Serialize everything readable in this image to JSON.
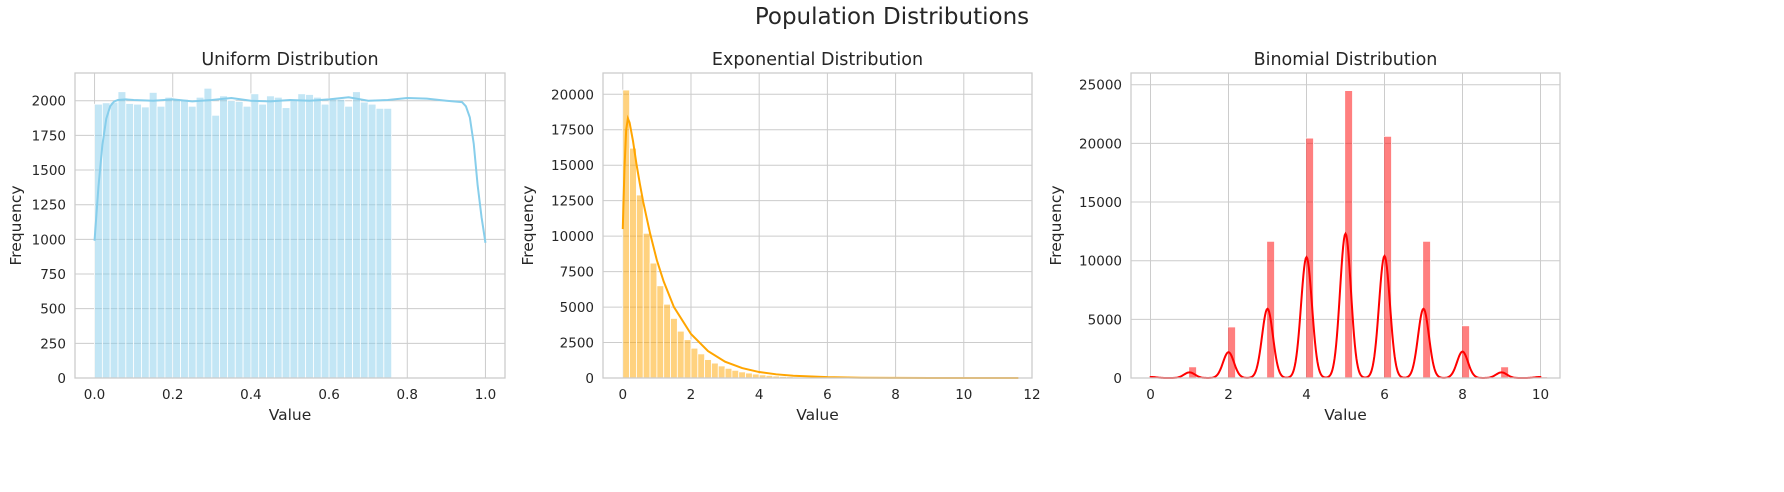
{
  "figure": {
    "suptitle": "Population Distributions"
  },
  "chart_data": [
    {
      "type": "bar",
      "title": "Uniform Distribution",
      "xlabel": "Value",
      "ylabel": "Frequency",
      "xlim": [
        -0.05,
        1.05
      ],
      "ylim": [
        0,
        2200
      ],
      "xticks": [
        0.0,
        0.2,
        0.4,
        0.6,
        0.8,
        1.0
      ],
      "xtick_labels": [
        "0.0",
        "0.2",
        "0.4",
        "0.6",
        "0.8",
        "1.0"
      ],
      "yticks": [
        0,
        250,
        500,
        750,
        1000,
        1250,
        1500,
        1750,
        2000
      ],
      "yticks_labels": [
        "0",
        "250",
        "500",
        "750",
        "1000",
        "1250",
        "1500",
        "1750",
        "2000"
      ],
      "grid": true,
      "bar_color": "#87ceeb",
      "bar_opacity": 0.5,
      "line_color": "#87ceeb",
      "bins": {
        "start": 0.0,
        "width": 0.02,
        "counts": [
          1975,
          1985,
          1990,
          2065,
          1980,
          1975,
          1955,
          2060,
          1960,
          2025,
          2015,
          2010,
          1960,
          2025,
          2090,
          1895,
          2035,
          2000,
          1995,
          1960,
          2050,
          1975,
          2035,
          2025,
          1950,
          2000,
          2050,
          2045,
          2025,
          1975,
          2015,
          2010,
          1960,
          2065,
          1990,
          1975,
          1945,
          1945
        ]
      },
      "kde": {
        "x": [
          0.0,
          0.01,
          0.02,
          0.03,
          0.04,
          0.05,
          0.06,
          0.08,
          0.1,
          0.15,
          0.2,
          0.25,
          0.3,
          0.35,
          0.4,
          0.45,
          0.5,
          0.55,
          0.6,
          0.65,
          0.7,
          0.75,
          0.8,
          0.85,
          0.9,
          0.94,
          0.95,
          0.96,
          0.97,
          0.98,
          0.99,
          1.0
        ],
        "y": [
          990,
          1380,
          1680,
          1870,
          1960,
          1995,
          2005,
          2010,
          2005,
          2000,
          2010,
          1995,
          2005,
          2020,
          2000,
          1995,
          2005,
          2000,
          2010,
          2025,
          2000,
          2005,
          2020,
          2015,
          2000,
          1990,
          1960,
          1880,
          1690,
          1390,
          1160,
          975
        ]
      }
    },
    {
      "type": "bar",
      "title": "Exponential Distribution",
      "xlabel": "Value",
      "ylabel": "Frequency",
      "xlim": [
        -0.58,
        12.0
      ],
      "ylim": [
        0,
        21500
      ],
      "xticks": [
        0,
        2,
        4,
        6,
        8,
        10,
        12
      ],
      "xtick_labels": [
        "0",
        "2",
        "4",
        "6",
        "8",
        "10",
        "12"
      ],
      "yticks": [
        0,
        2500,
        5000,
        7500,
        10000,
        12500,
        15000,
        17500,
        20000
      ],
      "yticks_labels": [
        "0",
        "2500",
        "5000",
        "7500",
        "10000",
        "12500",
        "15000",
        "17500",
        "20000"
      ],
      "grid": true,
      "bar_color": "#ffa500",
      "bar_opacity": 0.5,
      "line_color": "#ffa500",
      "bins": {
        "start": 0.0,
        "width": 0.2,
        "counts": [
          20300,
          16200,
          12900,
          10200,
          8100,
          6500,
          5200,
          4200,
          3300,
          2700,
          2100,
          1700,
          1300,
          1050,
          850,
          680,
          540,
          430,
          350,
          280,
          220,
          180,
          140,
          110,
          90,
          70,
          56,
          45,
          36,
          29,
          23,
          18,
          15,
          12,
          10,
          8,
          6,
          5,
          4,
          3,
          3,
          2,
          2,
          1,
          1,
          1,
          1,
          1,
          1,
          1,
          1,
          1,
          1,
          1,
          1,
          1,
          1,
          1
        ]
      },
      "kde": {
        "x": [
          0.0,
          0.05,
          0.1,
          0.15,
          0.2,
          0.3,
          0.4,
          0.5,
          0.6,
          0.8,
          1.0,
          1.2,
          1.5,
          2.0,
          2.5,
          3.0,
          3.5,
          4.0,
          4.5,
          5.0,
          6.0,
          7.0,
          8.0,
          9.0,
          10.0,
          11.0,
          11.6
        ],
        "y": [
          10500,
          14800,
          17500,
          18300,
          18000,
          16700,
          15100,
          13700,
          12400,
          10200,
          8300,
          6800,
          5000,
          3100,
          1900,
          1150,
          700,
          420,
          260,
          160,
          60,
          22,
          8,
          3,
          1,
          0,
          0
        ]
      }
    },
    {
      "type": "bar",
      "title": "Binomial Distribution",
      "xlabel": "Value",
      "ylabel": "Frequency",
      "xlim": [
        -0.5,
        10.5
      ],
      "ylim": [
        0,
        26000
      ],
      "xticks": [
        0,
        2,
        4,
        6,
        8,
        10
      ],
      "xtick_labels": [
        "0",
        "2",
        "4",
        "6",
        "8",
        "10"
      ],
      "yticks": [
        0,
        5000,
        10000,
        15000,
        20000,
        25000
      ],
      "yticks_labels": [
        "0",
        "5000",
        "10000",
        "15000",
        "20000",
        "25000"
      ],
      "grid": true,
      "bar_color": "#ff0000",
      "bar_opacity": 0.5,
      "line_color": "#ff0000",
      "bins": {
        "values": [
          0,
          1,
          2,
          3,
          4,
          5,
          6,
          7,
          8,
          9,
          10
        ],
        "width": 0.2,
        "counts": [
          100,
          950,
          4350,
          11650,
          20450,
          24500,
          20600,
          11650,
          4450,
          950,
          100
        ]
      },
      "kde": {
        "peaks_x": [
          0,
          1,
          2,
          3,
          4,
          5,
          6,
          7,
          8,
          9,
          10
        ],
        "peaks_y": [
          90,
          480,
          2200,
          5900,
          10300,
          12300,
          10400,
          5900,
          2250,
          480,
          90
        ],
        "sigma": 0.14
      }
    }
  ]
}
